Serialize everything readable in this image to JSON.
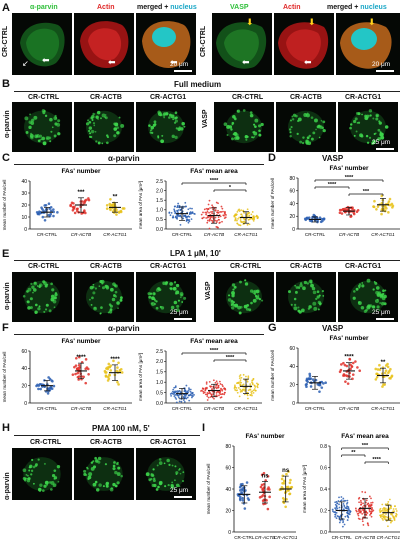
{
  "panels": {
    "A": {
      "letter": "A",
      "row_label": "CR-CTRL",
      "left": {
        "col1": "α-parvin",
        "col2": "Actin",
        "col3a": "merged + ",
        "col3b": "nucleus",
        "scale": "20 μm"
      },
      "right": {
        "col1": "VASP",
        "col2": "Actin",
        "col3a": "merged + ",
        "col3b": "nucleus",
        "scale": "20 μm"
      }
    },
    "B": {
      "letter": "B",
      "condition": "Full medium",
      "row_left": "α-parvin",
      "row_right": "VASP",
      "cols": [
        "CR-CTRL",
        "CR-ACTB",
        "CR-ACTG1"
      ],
      "scale": "25 μm"
    },
    "C": {
      "letter": "C",
      "header": "α-parvin"
    },
    "D": {
      "letter": "D",
      "header": "VASP"
    },
    "E": {
      "letter": "E",
      "condition": "LPA 1 μM, 10'",
      "row_left": "α-parvin",
      "row_right": "VASP",
      "cols": [
        "CR-CTRL",
        "CR-ACTB",
        "CR-ACTG1"
      ],
      "scale": "25 μm"
    },
    "F": {
      "letter": "F",
      "header": "α-parvin"
    },
    "G": {
      "letter": "G",
      "header": "VASP"
    },
    "H": {
      "letter": "H",
      "condition": "PMA 100 nM, 5'",
      "row_left": "α-parvin",
      "cols": [
        "CR-CTRL",
        "CR-ACTB",
        "CR-ACTG1"
      ],
      "scale": "25 μm"
    },
    "I": {
      "letter": "I"
    }
  },
  "colors": {
    "ctrl": "#2b5fb3",
    "actb": "#e0302a",
    "actg1": "#e8c21a",
    "fluor": "#3cd24a",
    "actin": "#e02a2a",
    "nucleus": "#23c6c6"
  },
  "chart_data": [
    {
      "id": "C1",
      "type": "scatter",
      "title": "FAs' number",
      "ylabel": "mean number of FAs/cell",
      "categories": [
        "CR-CTRL",
        "CR-ACTB",
        "CR-ACTG1"
      ],
      "ylim": [
        0,
        40
      ],
      "yticks": [
        0,
        10,
        20,
        30,
        40
      ],
      "means": [
        14,
        20,
        18
      ],
      "sd": [
        4,
        6,
        4
      ],
      "sig": [
        "",
        "***",
        "**"
      ]
    },
    {
      "id": "C2",
      "type": "scatter",
      "title": "FAs' mean area",
      "ylabel": "mean area of FAs [μm²]",
      "categories": [
        "CR-CTRL",
        "CR-ACTB",
        "CR-ACTG1"
      ],
      "ylim": [
        0,
        2.5
      ],
      "yticks": [
        0.0,
        0.5,
        1.0,
        1.5,
        2.0,
        2.5
      ],
      "means": [
        0.8,
        0.7,
        0.6
      ],
      "sd": [
        0.35,
        0.4,
        0.3
      ],
      "brackets": [
        {
          "from": 0,
          "to": 2,
          "label": "****"
        },
        {
          "from": 1,
          "to": 2,
          "label": "*"
        }
      ]
    },
    {
      "id": "D",
      "type": "scatter",
      "title": "FAs' number",
      "ylabel": "mean number of FAs/cell",
      "categories": [
        "CR-CTRL",
        "CR-ACTB",
        "CR-ACTG1"
      ],
      "ylim": [
        0,
        80
      ],
      "yticks": [
        0,
        20,
        40,
        60,
        80
      ],
      "means": [
        15,
        28,
        38
      ],
      "sd": [
        4,
        6,
        10
      ],
      "brackets": [
        {
          "from": 0,
          "to": 2,
          "label": "****"
        },
        {
          "from": 0,
          "to": 1,
          "label": "****"
        },
        {
          "from": 1,
          "to": 2,
          "label": "***"
        }
      ]
    },
    {
      "id": "F1",
      "type": "scatter",
      "title": "FAs' number",
      "ylabel": "mean number of FAs/cell",
      "categories": [
        "CR-CTRL",
        "CR-ACTB",
        "CR-ACTG1"
      ],
      "ylim": [
        0,
        60
      ],
      "yticks": [
        0,
        20,
        40,
        60
      ],
      "means": [
        20,
        37,
        35
      ],
      "sd": [
        6,
        9,
        9
      ],
      "sig": [
        "",
        "****",
        "****"
      ]
    },
    {
      "id": "F2",
      "type": "scatter",
      "title": "FAs' mean area",
      "ylabel": "mean area of FAs [μm²]",
      "categories": [
        "CR-CTRL",
        "CR-ACTB",
        "CR-ACTG1"
      ],
      "ylim": [
        0,
        2.5
      ],
      "yticks": [
        0.0,
        0.5,
        1.0,
        1.5,
        2.0,
        2.5
      ],
      "means": [
        0.45,
        0.6,
        0.8
      ],
      "sd": [
        0.25,
        0.3,
        0.35
      ],
      "brackets": [
        {
          "from": 0,
          "to": 2,
          "label": "****"
        },
        {
          "from": 1,
          "to": 2,
          "label": "****"
        }
      ]
    },
    {
      "id": "G",
      "type": "scatter",
      "title": "FAs' number",
      "ylabel": "mean number of FAs/cell",
      "categories": [
        "CR-CTRL",
        "CR-ACTB",
        "CR-ACTG1"
      ],
      "ylim": [
        0,
        60
      ],
      "yticks": [
        0,
        20,
        40,
        60
      ],
      "means": [
        22,
        35,
        30
      ],
      "sd": [
        7,
        9,
        8
      ],
      "sig": [
        "",
        "****",
        "**"
      ]
    },
    {
      "id": "I1",
      "type": "scatter",
      "title": "FAs' number",
      "ylabel": "mean number of FAs/cell",
      "categories": [
        "CR-CTRL",
        "CR-ACTB",
        "CR-ACTG1"
      ],
      "ylim": [
        0,
        80
      ],
      "yticks": [
        0,
        20,
        40,
        60,
        80
      ],
      "means": [
        35,
        37,
        40
      ],
      "sd": [
        8,
        10,
        12
      ],
      "sig": [
        "",
        "ns",
        "ns"
      ]
    },
    {
      "id": "I2",
      "type": "scatter",
      "title": "FAs' mean area",
      "ylabel": "mean area of FAs [μm²]",
      "categories": [
        "CR-CTRL",
        "CR-ACTB",
        "CR-ACTG1"
      ],
      "ylim": [
        0,
        0.8
      ],
      "yticks": [
        0.0,
        0.2,
        0.4,
        0.6,
        0.8
      ],
      "means": [
        0.2,
        0.22,
        0.18
      ],
      "sd": [
        0.08,
        0.09,
        0.07
      ],
      "brackets": [
        {
          "from": 0,
          "to": 2,
          "label": "***"
        },
        {
          "from": 0,
          "to": 1,
          "label": "**"
        },
        {
          "from": 1,
          "to": 2,
          "label": "****"
        }
      ]
    }
  ]
}
